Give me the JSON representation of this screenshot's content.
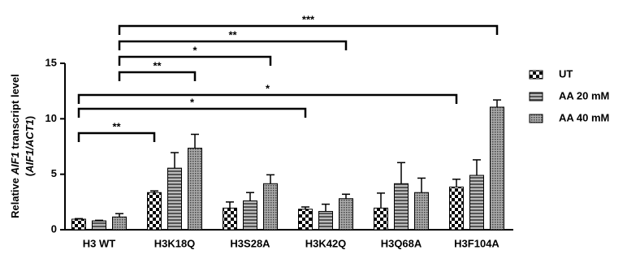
{
  "chart_data": {
    "type": "bar",
    "ylabel_parts": [
      "Relative ",
      "AIF1",
      " transcript level"
    ],
    "ylabel2_parts": [
      "(",
      "AIF1/ACT1",
      ")"
    ],
    "categories": [
      "H3 WT",
      "H3K18Q",
      "H3S28A",
      "H3K42Q",
      "H3Q68A",
      "H3F104A"
    ],
    "series": [
      {
        "name": "UT",
        "color": "#000000",
        "pattern": "checker",
        "values": [
          0.95,
          3.35,
          1.95,
          1.85,
          1.95,
          3.85
        ],
        "errors": [
          0.05,
          0.15,
          0.55,
          0.2,
          1.35,
          0.7
        ]
      },
      {
        "name": "AA 20 mM",
        "color": "#808080",
        "pattern": "hstripes",
        "values": [
          0.8,
          5.55,
          2.6,
          1.65,
          4.15,
          4.9
        ],
        "errors": [
          0.05,
          1.4,
          0.75,
          0.65,
          1.9,
          1.4
        ]
      },
      {
        "name": "AA 40 mM",
        "color": "#9a9a9a",
        "pattern": "dots",
        "values": [
          1.15,
          7.35,
          4.15,
          2.8,
          3.35,
          11.05
        ],
        "errors": [
          0.3,
          1.25,
          0.8,
          0.4,
          1.3,
          0.65
        ]
      }
    ],
    "comparisons": [
      {
        "label": "***",
        "series": "AA 40 mM",
        "from": "H3 WT",
        "to": "H3F104A"
      },
      {
        "label": "**",
        "series": "AA 40 mM",
        "from": "H3 WT",
        "to": "H3K42Q"
      },
      {
        "label": "*",
        "series": "AA 40 mM",
        "from": "H3 WT",
        "to": "H3S28A"
      },
      {
        "label": "**",
        "series": "AA 40 mM",
        "from": "H3 WT",
        "to": "H3K18Q"
      },
      {
        "label": "*",
        "series": "UT",
        "from": "H3 WT",
        "to": "H3F104A"
      },
      {
        "label": "*",
        "series": "UT",
        "from": "H3 WT",
        "to": "H3K42Q"
      },
      {
        "label": "**",
        "series": "UT",
        "from": "H3 WT",
        "to": "H3K18Q"
      }
    ],
    "ylim": [
      0,
      15
    ],
    "yticks": [
      0,
      5,
      10,
      15
    ],
    "legend": "right"
  }
}
